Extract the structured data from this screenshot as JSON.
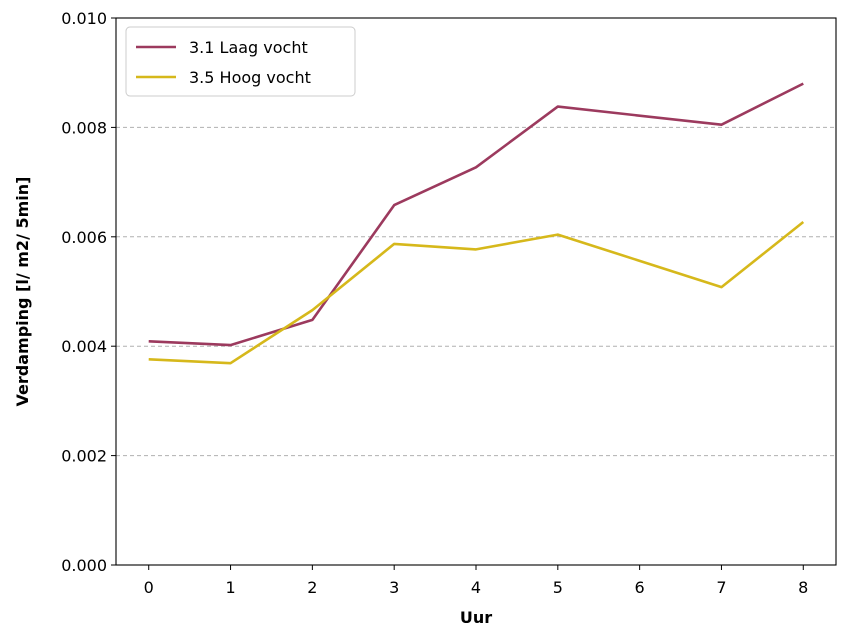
{
  "chart_data": {
    "type": "line",
    "title": "",
    "xlabel": "Uur",
    "ylabel": "Verdamping [l/ m2/ 5min]",
    "x": [
      0,
      1,
      2,
      3,
      4,
      5,
      6,
      7,
      8
    ],
    "xticks": [
      "0",
      "1",
      "2",
      "3",
      "4",
      "5",
      "6",
      "7",
      "8"
    ],
    "yticks": [
      "0.000",
      "0.002",
      "0.004",
      "0.006",
      "0.008",
      "0.010"
    ],
    "ytick_values": [
      0.0,
      0.002,
      0.004,
      0.006,
      0.008,
      0.01
    ],
    "xlim": [
      -0.4,
      8.4
    ],
    "ylim": [
      0.0,
      0.01
    ],
    "grid": "horizontal dashed",
    "legend_position": "top-left",
    "series": [
      {
        "name": "3.1 Laag vocht",
        "color": "#9c3a5e",
        "values": [
          0.00409,
          0.00402,
          0.00448,
          0.00658,
          0.00727,
          0.00838,
          null,
          0.00805,
          0.0088
        ]
      },
      {
        "name": "3.5 Hoog vocht",
        "color": "#d6b81b",
        "values": [
          0.00376,
          0.00369,
          0.00466,
          0.00587,
          0.00577,
          0.00604,
          null,
          0.00508,
          0.00627
        ]
      }
    ]
  }
}
